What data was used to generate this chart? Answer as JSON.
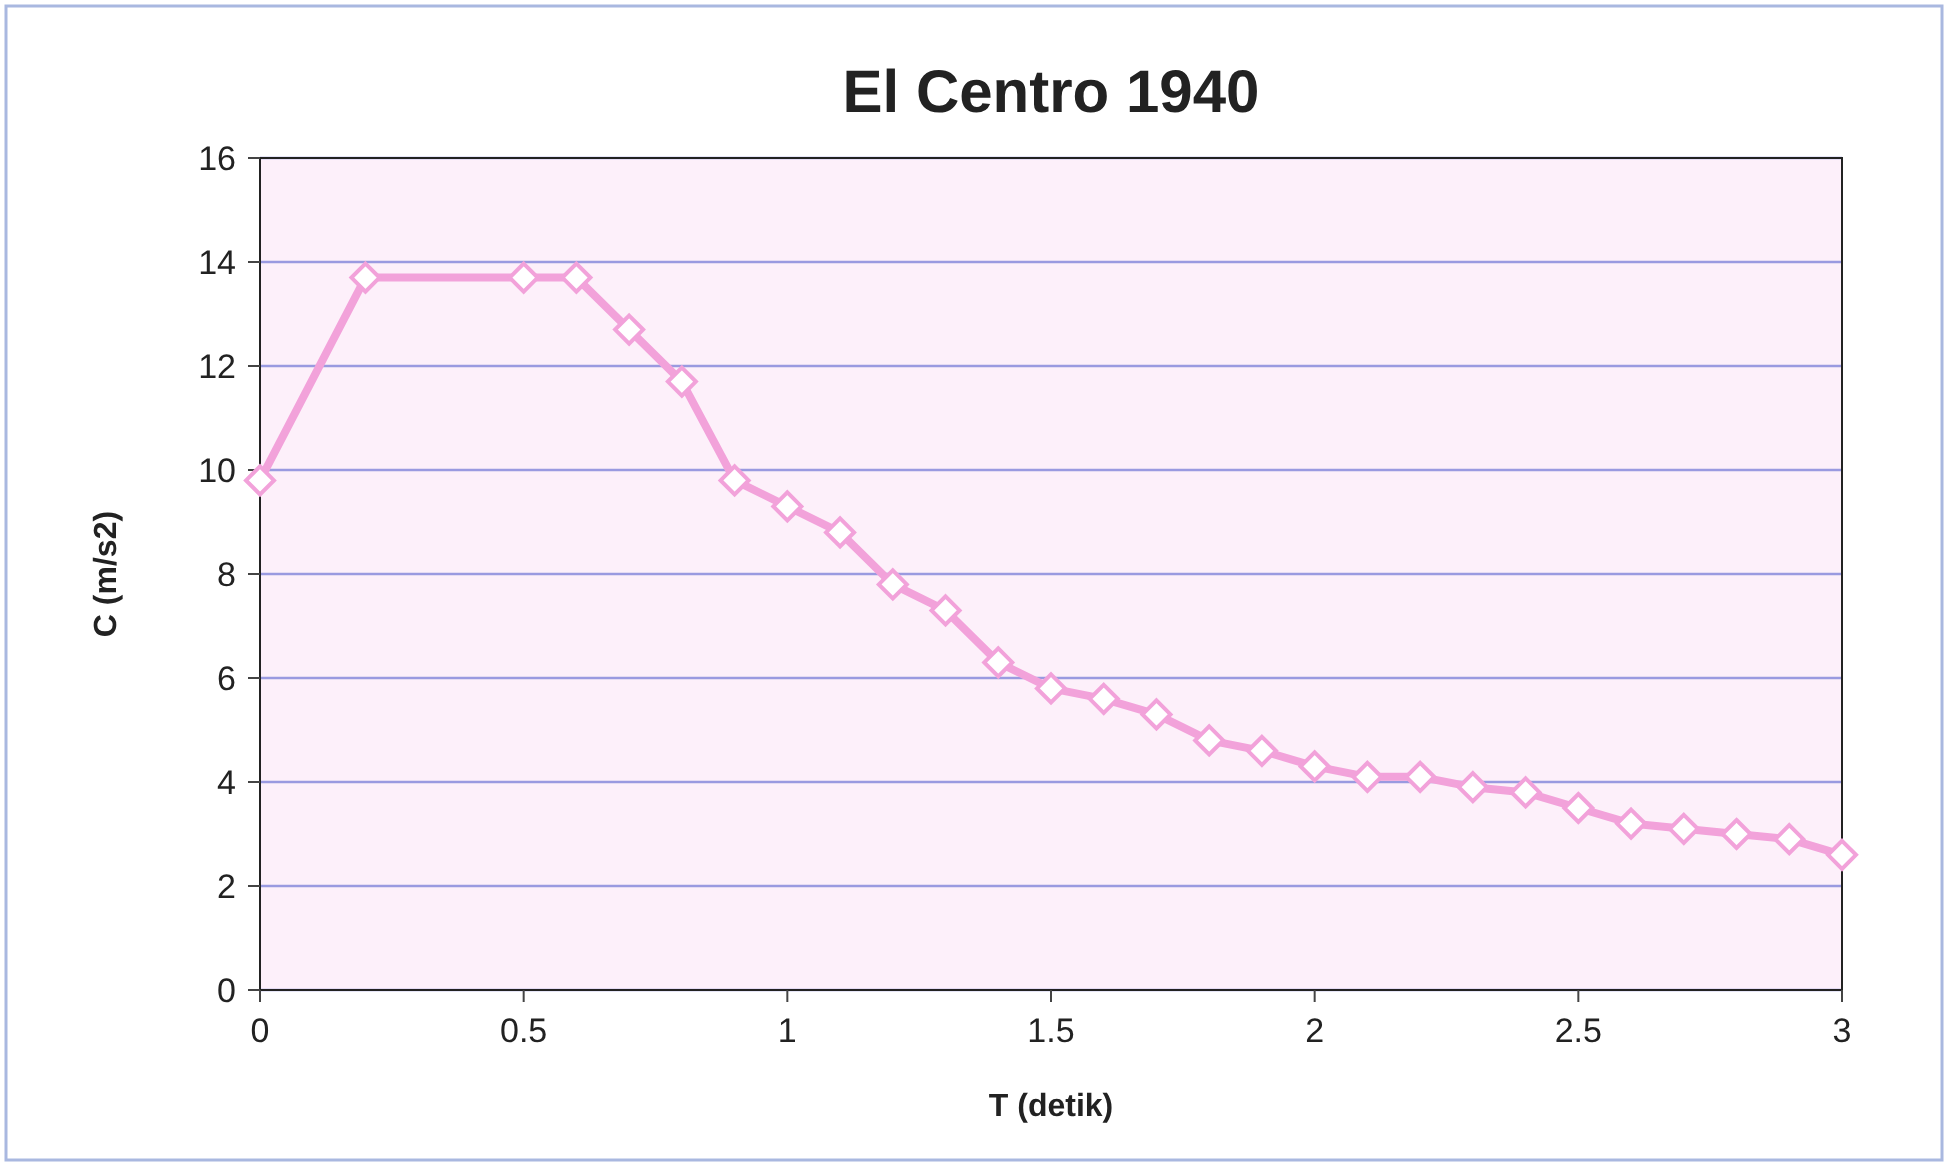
{
  "chart_data": {
    "type": "line",
    "title": "El Centro 1940",
    "xlabel": "T (detik)",
    "ylabel": "C (m/s2)",
    "x": [
      0,
      0.2,
      0.5,
      0.6,
      0.7,
      0.8,
      0.9,
      1.0,
      1.1,
      1.2,
      1.3,
      1.4,
      1.5,
      1.6,
      1.7,
      1.8,
      1.9,
      2.0,
      2.1,
      2.2,
      2.3,
      2.4,
      2.5,
      2.6,
      2.7,
      2.8,
      2.9,
      3.0
    ],
    "series": [
      {
        "color": "#f2a2da",
        "values": [
          9.8,
          13.7,
          13.7,
          13.7,
          12.7,
          11.7,
          9.8,
          9.3,
          8.8,
          7.8,
          7.3,
          6.3,
          5.8,
          5.6,
          5.3,
          4.8,
          4.6,
          4.3,
          4.1,
          4.1,
          3.9,
          3.8,
          3.5,
          3.2,
          3.1,
          3.0,
          2.9,
          2.6
        ]
      }
    ],
    "xlim": [
      0,
      3
    ],
    "xticks": [
      0,
      0.5,
      1,
      1.5,
      2,
      2.5,
      3
    ],
    "ylim": [
      0,
      16
    ],
    "yticks": [
      0,
      2,
      4,
      6,
      8,
      10,
      12,
      14,
      16
    ],
    "grid": "y",
    "marker": "diamond",
    "line_style": "solid"
  }
}
